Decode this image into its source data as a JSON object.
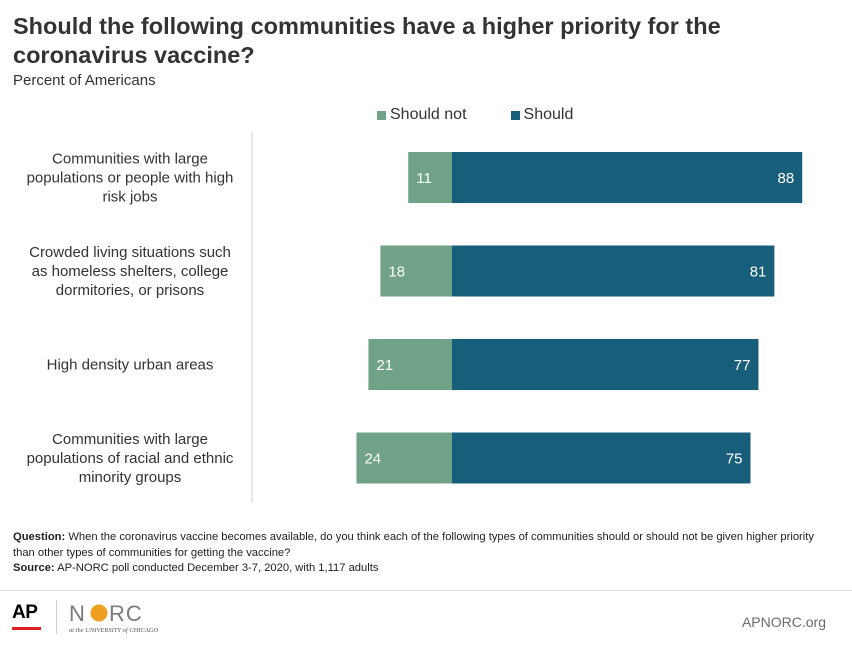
{
  "title": "Should the following communities have a higher priority for the coronavirus vaccine?",
  "subtitle": "Percent  of Americans",
  "legend": {
    "should_not": "Should not",
    "should": "Should"
  },
  "colors": {
    "should_not": "#6fa287",
    "should": "#175e7a",
    "axis": "#d0d0d0"
  },
  "chart_data": {
    "type": "bar",
    "orientation": "horizontal-diverging",
    "categories": [
      [
        "Communities with large",
        "populations or people with high",
        "risk jobs"
      ],
      [
        "Crowded living situations such",
        "as homeless shelters, college",
        "dormitories, or prisons"
      ],
      [
        "High density urban areas"
      ],
      [
        "Communities with large",
        "populations of racial and ethnic",
        "minority groups"
      ]
    ],
    "series": [
      {
        "name": "Should not",
        "values": [
          11,
          18,
          21,
          24
        ]
      },
      {
        "name": "Should",
        "values": [
          88,
          81,
          77,
          75
        ]
      }
    ],
    "xlim": [
      -25,
      90
    ],
    "legend_position": "top",
    "grid": false
  },
  "notes": {
    "question_label": "Question:",
    "question_text": " When the coronavirus vaccine becomes available, do you think each of the following types of communities should or should not be given higher priority than other types of communities for getting the vaccine?",
    "source_label": "Source:",
    "source_text": " AP-NORC  poll conducted December  3-7, 2020, with 1,117 adults"
  },
  "footer": {
    "ap_logo": "AP",
    "norc_logo": "NORC",
    "norc_tagline": "at the UNIVERSITY of CHICAGO",
    "url": "APNORC.org"
  }
}
